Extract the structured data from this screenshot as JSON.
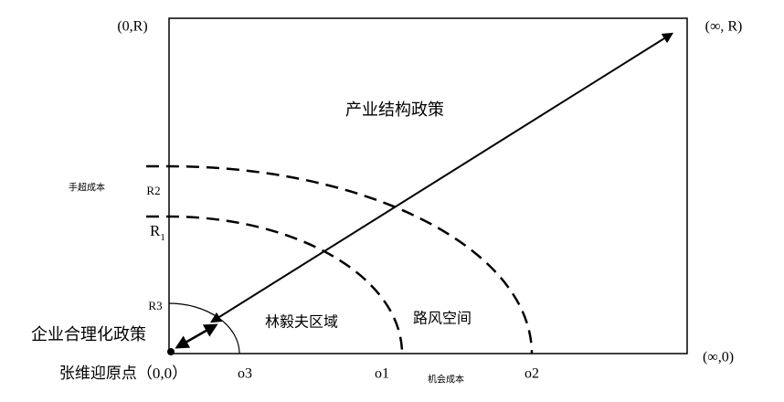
{
  "corners": {
    "top_left": "(0,R)",
    "top_right": "(∞, R)",
    "bottom_right": "(∞,0)"
  },
  "title": "产业结构政策",
  "left_labels": {
    "cost": "手超成本",
    "r2": "R2",
    "r1_main": "R",
    "r1_sub": "1",
    "r3": "R3",
    "policy": "企业合理化政策",
    "origin": "张维迎原点（0,0）"
  },
  "bottom_labels": {
    "o3": "o3",
    "o1": "o1",
    "cost": "机会成本",
    "o2": "o2"
  },
  "regions": {
    "lin": "林毅夫区域",
    "lu": "路风空间"
  }
}
